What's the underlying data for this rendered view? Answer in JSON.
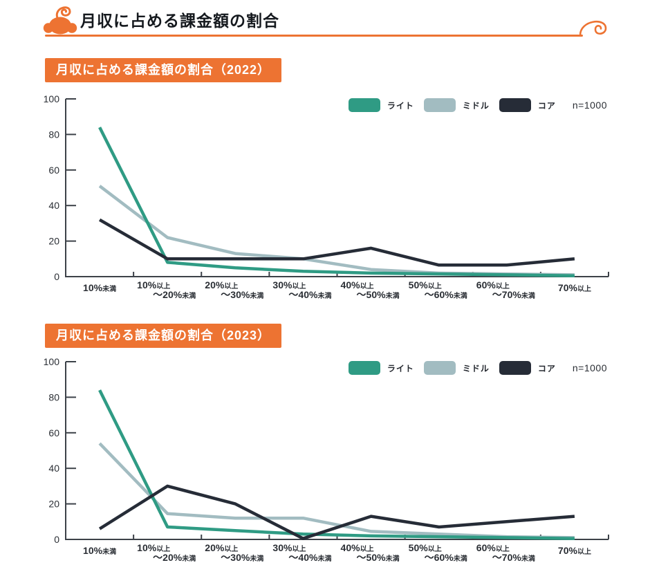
{
  "header": {
    "title": "月収に占める課金額の割合"
  },
  "colors": {
    "accent_orange": "#ed7332",
    "axis": "#3c4148",
    "series_light": "#2f9b84",
    "series_middle": "#a2bcc1",
    "series_core": "#262c37"
  },
  "legend": {
    "sample_size": "n=1000"
  },
  "x_labels": [
    {
      "l1_main": "10%",
      "l1_suf": "未満"
    },
    {
      "l1_main": "10%",
      "l1_suf": "以上",
      "l2_main": "～20%",
      "l2_suf": "未満"
    },
    {
      "l1_main": "20%",
      "l1_suf": "以上",
      "l2_main": "～30%",
      "l2_suf": "未満"
    },
    {
      "l1_main": "30%",
      "l1_suf": "以上",
      "l2_main": "～40%",
      "l2_suf": "未満"
    },
    {
      "l1_main": "40%",
      "l1_suf": "以上",
      "l2_main": "～50%",
      "l2_suf": "未満"
    },
    {
      "l1_main": "50%",
      "l1_suf": "以上",
      "l2_main": "～60%",
      "l2_suf": "未満"
    },
    {
      "l1_main": "60%",
      "l1_suf": "以上",
      "l2_main": "～70%",
      "l2_suf": "未満"
    },
    {
      "l1_main": "70%",
      "l1_suf": "以上"
    }
  ],
  "chart_data": [
    {
      "type": "line",
      "title": "月収に占める課金額の割合（2022）",
      "categories": [
        "10%未満",
        "10%以上～20%未満",
        "20%以上～30%未満",
        "30%以上～40%未満",
        "40%以上～50%未満",
        "50%以上～60%未満",
        "60%以上～70%未満",
        "70%以上"
      ],
      "series": [
        {
          "name": "ライト",
          "color": "#2f9b84",
          "values": [
            84,
            8,
            5,
            3,
            2,
            1.5,
            1,
            0.5
          ]
        },
        {
          "name": "ミドル",
          "color": "#a2bcc1",
          "values": [
            51,
            22,
            13,
            10,
            4,
            2,
            1.5,
            1
          ]
        },
        {
          "name": "コア",
          "color": "#262c37",
          "values": [
            32,
            10,
            10,
            10,
            16,
            6.5,
            6.5,
            10
          ]
        }
      ],
      "ylim": [
        0,
        100
      ],
      "yticks": [
        0,
        20,
        40,
        60,
        80,
        100
      ],
      "grid": false,
      "legend_position": "top-right",
      "annotation": "n=1000"
    },
    {
      "type": "line",
      "title": "月収に占める課金額の割合（2023）",
      "categories": [
        "10%未満",
        "10%以上～20%未満",
        "20%以上～30%未満",
        "30%以上～40%未満",
        "40%以上～50%未満",
        "50%以上～60%未満",
        "60%以上～70%未満",
        "70%以上"
      ],
      "series": [
        {
          "name": "ライト",
          "color": "#2f9b84",
          "values": [
            84,
            7,
            5,
            3,
            2,
            1.5,
            1,
            0.5
          ]
        },
        {
          "name": "ミドル",
          "color": "#a2bcc1",
          "values": [
            54,
            14.5,
            12,
            12,
            4.5,
            3,
            1.5,
            1
          ]
        },
        {
          "name": "コア",
          "color": "#262c37",
          "values": [
            6,
            30,
            20,
            0.5,
            13,
            7,
            10,
            13
          ]
        }
      ],
      "ylim": [
        0,
        100
      ],
      "yticks": [
        0,
        20,
        40,
        60,
        80,
        100
      ],
      "grid": false,
      "legend_position": "top-right",
      "annotation": "n=1000"
    }
  ]
}
